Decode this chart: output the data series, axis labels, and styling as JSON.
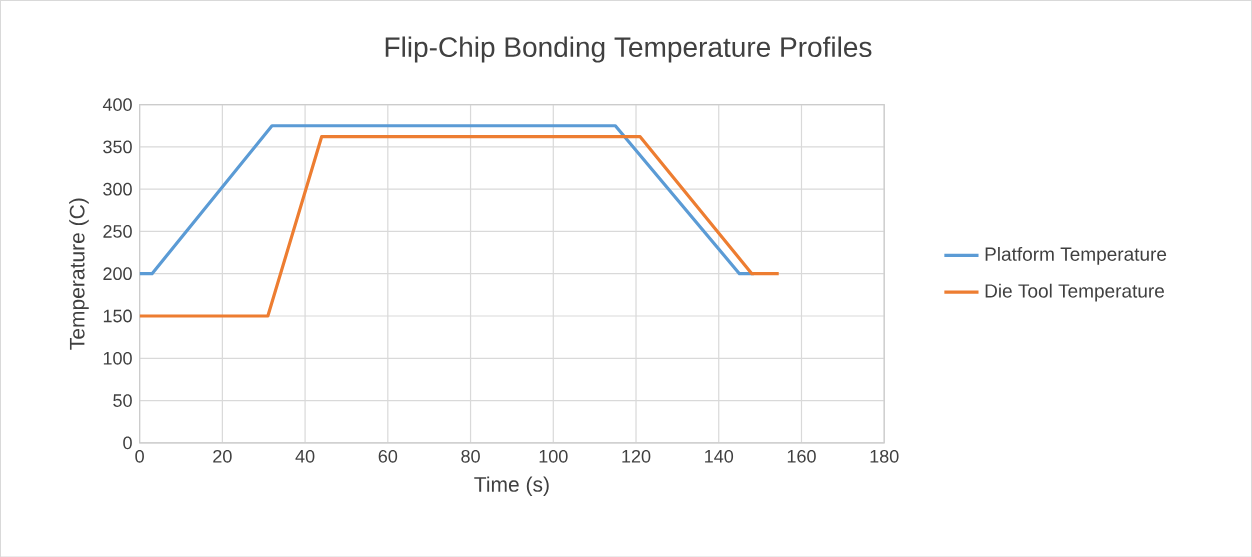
{
  "chart_data": {
    "type": "line",
    "title": "Flip-Chip Bonding Temperature Profiles",
    "xlabel": "Time (s)",
    "ylabel": "Temperature (C)",
    "series": [
      {
        "name": "Platform Temperature",
        "color": "#5b9bd5",
        "x": [
          0,
          3,
          32,
          115,
          145,
          148.5
        ],
        "values": [
          200,
          200,
          375,
          375,
          200,
          200
        ]
      },
      {
        "name": "Die Tool Temperature",
        "color": "#ed7d31",
        "x": [
          0,
          31,
          44,
          121,
          148,
          154.5
        ],
        "values": [
          150,
          150,
          362,
          362,
          200,
          200
        ]
      }
    ],
    "xlim": [
      0,
      180
    ],
    "xticks": [
      0,
      20,
      40,
      60,
      80,
      100,
      120,
      140,
      160,
      180
    ],
    "ylim": [
      0,
      400
    ],
    "yticks": [
      0,
      50,
      100,
      150,
      200,
      250,
      300,
      350,
      400
    ],
    "grid": true,
    "legend": "right",
    "marker": "none",
    "line_style": "solid"
  }
}
